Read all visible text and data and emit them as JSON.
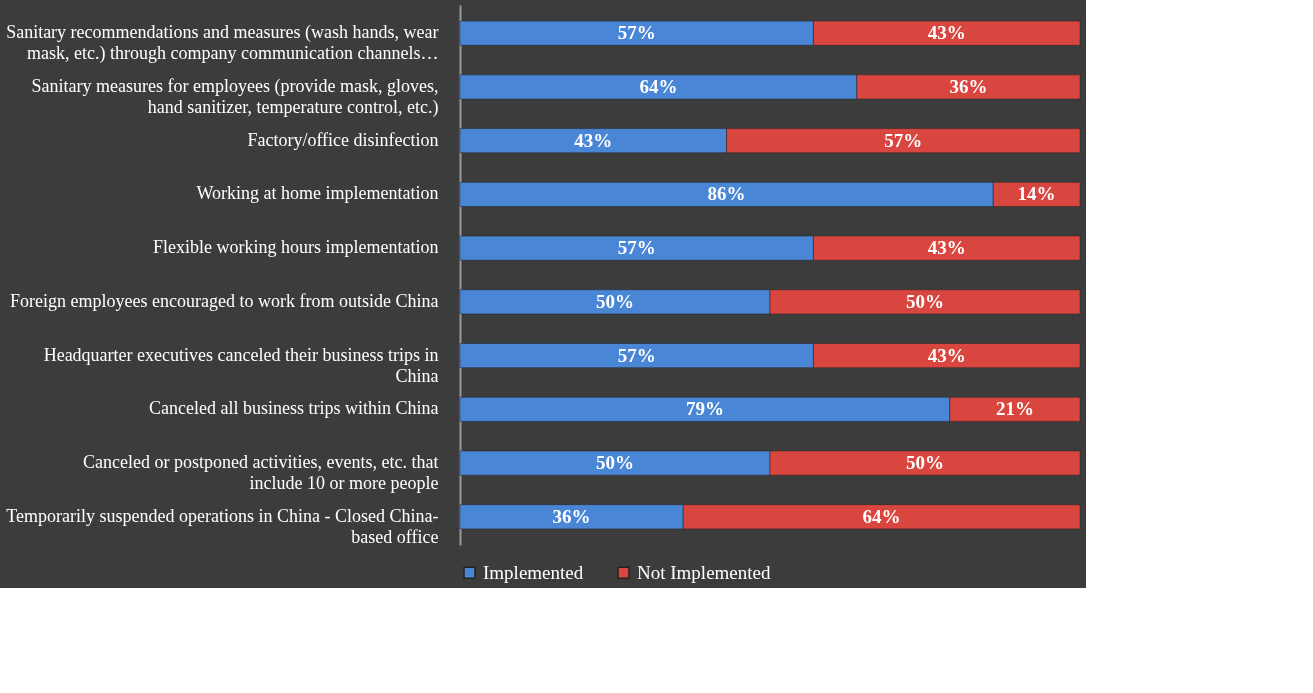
{
  "chart_data": {
    "type": "bar",
    "orientation": "horizontal",
    "stacked": true,
    "legend": "bottom",
    "tick_labels": false,
    "categories": [
      "Sanitary recommendations and measures (wash hands, wear mask, etc.) through company communication channels…",
      "Sanitary measures for employees (provide mask, gloves, hand sanitizer, temperature control, etc.)",
      "Factory/office disinfection",
      "Working at home implementation",
      "Flexible working hours implementation",
      "Foreign employees encouraged to work from outside China",
      "Headquarter executives canceled their business trips in China",
      "Canceled all business trips within China",
      "Canceled or postponed activities, events, etc. that include 10 or more people",
      "Temporarily suspended operations in China - Closed China-based office"
    ],
    "series": [
      {
        "name": "Implemented",
        "color": "#4a86d6",
        "values": [
          57,
          64,
          43,
          86,
          57,
          50,
          57,
          79,
          50,
          36
        ],
        "value_labels": [
          "57%",
          "64%",
          "43%",
          "86%",
          "57%",
          "50%",
          "57%",
          "79%",
          "50%",
          "36%"
        ]
      },
      {
        "name": "Not Implemented",
        "color": "#d9463f",
        "values": [
          43,
          36,
          57,
          14,
          43,
          50,
          43,
          21,
          50,
          64
        ],
        "value_labels": [
          "43%",
          "36%",
          "57%",
          "14%",
          "43%",
          "50%",
          "43%",
          "21%",
          "50%",
          "64%"
        ]
      }
    ]
  }
}
